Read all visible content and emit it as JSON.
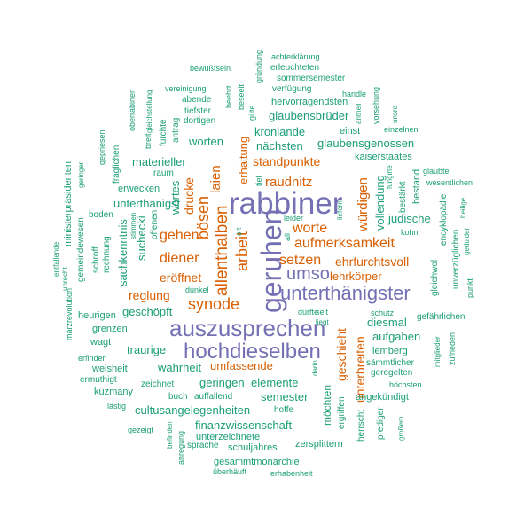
{
  "colors": {
    "green": "#1b9e77",
    "orange": "#d95f02",
    "purple": "#7570b3"
  },
  "words": [
    {
      "text": "rabbiner",
      "color": "purple"
    },
    {
      "text": "geruhen",
      "color": "purple"
    },
    {
      "text": "auszusprechen",
      "color": "purple"
    },
    {
      "text": "hochdieselben",
      "color": "purple"
    },
    {
      "text": "unterthänigster",
      "color": "purple"
    },
    {
      "text": "umso",
      "color": "purple"
    },
    {
      "text": "allenthalben",
      "color": "orange"
    },
    {
      "text": "arbeit",
      "color": "orange"
    },
    {
      "text": "bösen",
      "color": "orange"
    },
    {
      "text": "synode",
      "color": "orange"
    },
    {
      "text": "aufmerksamkeit",
      "color": "orange"
    },
    {
      "text": "setzen",
      "color": "orange"
    },
    {
      "text": "worte",
      "color": "orange"
    },
    {
      "text": "diener",
      "color": "orange"
    },
    {
      "text": "gehen",
      "color": "orange"
    },
    {
      "text": "raudnitz",
      "color": "orange"
    },
    {
      "text": "würdigen",
      "color": "orange"
    },
    {
      "text": "laien",
      "color": "orange"
    },
    {
      "text": "ehrfurchtsvoll",
      "color": "orange"
    },
    {
      "text": "unterbreiten",
      "color": "orange"
    },
    {
      "text": "geschieht",
      "color": "orange"
    },
    {
      "text": "reglung",
      "color": "orange"
    },
    {
      "text": "eröffnet",
      "color": "orange"
    },
    {
      "text": "drucke",
      "color": "orange"
    },
    {
      "text": "standpunkte",
      "color": "orange"
    },
    {
      "text": "erhaltung",
      "color": "orange"
    },
    {
      "text": "umfassende",
      "color": "orange"
    },
    {
      "text": "lehrkörper",
      "color": "orange"
    },
    {
      "text": "kronlande",
      "color": "green"
    },
    {
      "text": "nächsten",
      "color": "green"
    },
    {
      "text": "glaubensbrüder",
      "color": "green"
    },
    {
      "text": "glaubensgenossen",
      "color": "green"
    },
    {
      "text": "worten",
      "color": "green"
    },
    {
      "text": "materieller",
      "color": "green"
    },
    {
      "text": "unterthänigst",
      "color": "green"
    },
    {
      "text": "wortes",
      "color": "green"
    },
    {
      "text": "suchecki",
      "color": "green"
    },
    {
      "text": "sachkenntnis",
      "color": "green"
    },
    {
      "text": "geschöpft",
      "color": "green"
    },
    {
      "text": "traurige",
      "color": "green"
    },
    {
      "text": "wahrheit",
      "color": "green"
    },
    {
      "text": "geringen",
      "color": "green"
    },
    {
      "text": "elemente",
      "color": "green"
    },
    {
      "text": "semester",
      "color": "green"
    },
    {
      "text": "cultusangelegenheiten",
      "color": "green"
    },
    {
      "text": "finanzwissenschaft",
      "color": "green"
    },
    {
      "text": "diesmal",
      "color": "green"
    },
    {
      "text": "aufgaben",
      "color": "green"
    },
    {
      "text": "jüdische",
      "color": "green"
    },
    {
      "text": "vollendung",
      "color": "green"
    },
    {
      "text": "kaiserstaates",
      "color": "green"
    },
    {
      "text": "einst",
      "color": "green"
    },
    {
      "text": "möchten",
      "color": "green"
    },
    {
      "text": "gesammtmonarchie",
      "color": "green"
    },
    {
      "text": "unterzeichnete",
      "color": "green"
    },
    {
      "text": "schuljahres",
      "color": "green"
    },
    {
      "text": "zersplittern",
      "color": "green"
    },
    {
      "text": "sprache",
      "color": "green"
    },
    {
      "text": "überhäuft",
      "color": "green"
    },
    {
      "text": "erhabenheit",
      "color": "green"
    },
    {
      "text": "achterklärung",
      "color": "green"
    },
    {
      "text": "erleuchteten",
      "color": "green"
    },
    {
      "text": "sommersemester",
      "color": "green"
    },
    {
      "text": "verfügung",
      "color": "green"
    },
    {
      "text": "hervorragendsten",
      "color": "green"
    },
    {
      "text": "bewußtsein",
      "color": "green"
    },
    {
      "text": "vereinigung",
      "color": "green"
    },
    {
      "text": "abende",
      "color": "green"
    },
    {
      "text": "tiefster",
      "color": "green"
    },
    {
      "text": "dortigen",
      "color": "green"
    },
    {
      "text": "raum",
      "color": "green"
    },
    {
      "text": "erwecken",
      "color": "green"
    },
    {
      "text": "boden",
      "color": "green"
    },
    {
      "text": "rechnung",
      "color": "green"
    },
    {
      "text": "heurigen",
      "color": "green"
    },
    {
      "text": "grenzen",
      "color": "green"
    },
    {
      "text": "wagt",
      "color": "green"
    },
    {
      "text": "erfinden",
      "color": "green"
    },
    {
      "text": "weisheit",
      "color": "green"
    },
    {
      "text": "ermuthigt",
      "color": "green"
    },
    {
      "text": "kuzmany",
      "color": "green"
    },
    {
      "text": "lästig",
      "color": "green"
    },
    {
      "text": "gezeigt",
      "color": "green"
    },
    {
      "text": "zeichnet",
      "color": "green"
    },
    {
      "text": "buch",
      "color": "green"
    },
    {
      "text": "auffallend",
      "color": "green"
    },
    {
      "text": "hoffe",
      "color": "green"
    },
    {
      "text": "dunkel",
      "color": "green"
    },
    {
      "text": "leider",
      "color": "green"
    },
    {
      "text": "dürfte",
      "color": "green"
    },
    {
      "text": "seit",
      "color": "green"
    },
    {
      "text": "liegt",
      "color": "green"
    },
    {
      "text": "schutz",
      "color": "green"
    },
    {
      "text": "gefährlichen",
      "color": "green"
    },
    {
      "text": "lemberg",
      "color": "green"
    },
    {
      "text": "sämmtlicher",
      "color": "green"
    },
    {
      "text": "geregelten",
      "color": "green"
    },
    {
      "text": "höchsten",
      "color": "green"
    },
    {
      "text": "angekündigt",
      "color": "green"
    },
    {
      "text": "ergriffen",
      "color": "green"
    },
    {
      "text": "herrscht",
      "color": "green"
    },
    {
      "text": "prediger",
      "color": "green"
    },
    {
      "text": "großem",
      "color": "green"
    },
    {
      "text": "kohn",
      "color": "green"
    },
    {
      "text": "bestand",
      "color": "green"
    },
    {
      "text": "bestärkt",
      "color": "green"
    },
    {
      "text": "fungirte",
      "color": "green"
    },
    {
      "text": "glaubte",
      "color": "green"
    },
    {
      "text": "wesentlichen",
      "color": "green"
    },
    {
      "text": "heilige",
      "color": "green"
    },
    {
      "text": "gedulder",
      "color": "green"
    },
    {
      "text": "encyklopädie",
      "color": "green"
    },
    {
      "text": "unverzüglichen",
      "color": "green"
    },
    {
      "text": "gleichwol",
      "color": "green"
    },
    {
      "text": "punkt",
      "color": "green"
    },
    {
      "text": "mitglieder",
      "color": "green"
    },
    {
      "text": "zufrieden",
      "color": "green"
    },
    {
      "text": "handle",
      "color": "green"
    },
    {
      "text": "einzelnen",
      "color": "green"
    },
    {
      "text": "antheil",
      "color": "green"
    },
    {
      "text": "vorsehung",
      "color": "green"
    },
    {
      "text": "unsre",
      "color": "green"
    },
    {
      "text": "gründung",
      "color": "green"
    },
    {
      "text": "beseelt",
      "color": "green"
    },
    {
      "text": "güte",
      "color": "green"
    },
    {
      "text": "beehrt",
      "color": "green"
    },
    {
      "text": "gepriesen",
      "color": "green"
    },
    {
      "text": "geringer",
      "color": "green"
    },
    {
      "text": "oberrabiner",
      "color": "green"
    },
    {
      "text": "gleichstellung",
      "color": "green"
    },
    {
      "text": "breit",
      "color": "green"
    },
    {
      "text": "fürchte",
      "color": "green"
    },
    {
      "text": "antrag",
      "color": "green"
    },
    {
      "text": "fraglichen",
      "color": "green"
    },
    {
      "text": "stimmen",
      "color": "green"
    },
    {
      "text": "offenen",
      "color": "green"
    },
    {
      "text": "schroff",
      "color": "green"
    },
    {
      "text": "ministerpräsidenten",
      "color": "green"
    },
    {
      "text": "gemeindewesen",
      "color": "green"
    },
    {
      "text": "entfallende",
      "color": "green"
    },
    {
      "text": "unrecht",
      "color": "green"
    },
    {
      "text": "märzrevolution",
      "color": "green"
    },
    {
      "text": "anregung",
      "color": "green"
    },
    {
      "text": "befinden",
      "color": "green"
    },
    {
      "text": "all",
      "color": "green"
    },
    {
      "text": "tief",
      "color": "green"
    },
    {
      "text": "liefern",
      "color": "green"
    },
    {
      "text": "ort",
      "color": "green"
    },
    {
      "text": "darin",
      "color": "green"
    }
  ]
}
